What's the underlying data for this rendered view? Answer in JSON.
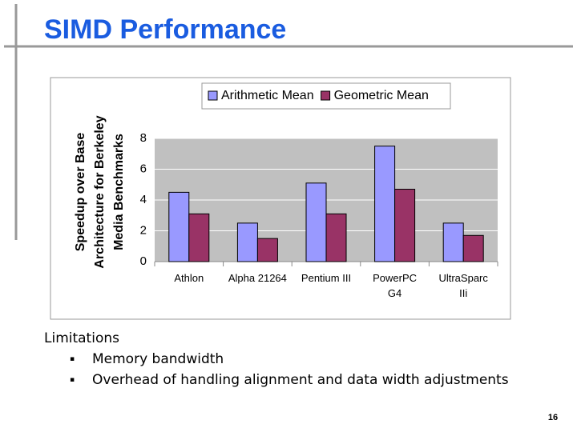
{
  "title": "SIMD Performance",
  "chart_data": {
    "type": "bar",
    "y_label": [
      "Speedup over Base",
      "Architecture for Berkeley",
      "Media Benchmarks"
    ],
    "categories": [
      "Athlon",
      "Alpha 21264",
      "Pentium III",
      "PowerPC G4",
      "UltraSparc IIi"
    ],
    "series": [
      {
        "name": "Arithmetic Mean",
        "color": "#9999ff",
        "values": [
          4.5,
          2.5,
          5.1,
          7.5,
          2.5
        ]
      },
      {
        "name": "Geometric Mean",
        "color": "#993366",
        "values": [
          3.1,
          1.5,
          3.1,
          4.7,
          1.7
        ]
      }
    ],
    "ylim": [
      0,
      8
    ],
    "yticks": [
      0,
      2,
      4,
      6,
      8
    ],
    "grid": true,
    "legend": "top"
  },
  "list": {
    "heading": "Limitations",
    "items": [
      "Memory bandwidth",
      "Overhead of handling alignment and data width adjustments"
    ]
  },
  "page_number": "16"
}
